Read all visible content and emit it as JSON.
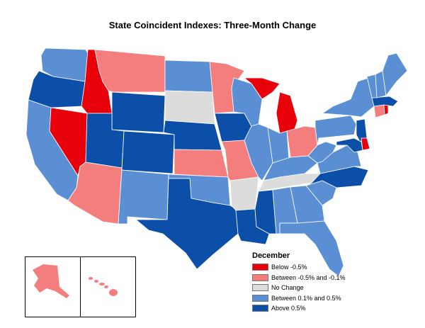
{
  "title": "State Coincident Indexes: Three-Month Change",
  "legend": {
    "title": "December",
    "items": [
      {
        "label": "Below -0.5%",
        "color": "#e8000b"
      },
      {
        "label": "Between -0.5% and -0.1%",
        "color": "#f47e7e"
      },
      {
        "label": "No Change",
        "color": "#dcdcdc"
      },
      {
        "label": "Between 0.1% and 0.5%",
        "color": "#5b8fd3"
      },
      {
        "label": "Above 0.5%",
        "color": "#0b4fa8"
      }
    ]
  },
  "states": {
    "WA": "between_0.1_0.5",
    "OR": "above_0.5",
    "CA": "between_0.1_0.5",
    "NV": "below_-0.5",
    "ID": "below_-0.5",
    "MT": "between_-0.5_-0.1",
    "WY": "above_0.5",
    "UT": "above_0.5",
    "AZ": "between_-0.5_-0.1",
    "CO": "above_0.5",
    "NM": "between_0.1_0.5",
    "ND": "between_0.1_0.5",
    "SD": "no_change",
    "NE": "above_0.5",
    "KS": "between_-0.5_-0.1",
    "OK": "between_0.1_0.5",
    "TX": "above_0.5",
    "MN": "between_-0.5_-0.1",
    "IA": "above_0.5",
    "MO": "between_-0.5_-0.1",
    "AR": "no_change",
    "LA": "above_0.5",
    "WI": "between_0.1_0.5",
    "IL": "between_0.1_0.5",
    "MI": "below_-0.5",
    "IN": "between_0.1_0.5",
    "OH": "between_-0.5_-0.1",
    "KY": "between_0.1_0.5",
    "TN": "no_change",
    "MS": "above_0.5",
    "AL": "between_0.1_0.5",
    "GA": "between_0.1_0.5",
    "FL": "between_0.1_0.5",
    "SC": "between_0.1_0.5",
    "NC": "above_0.5",
    "VA": "between_0.1_0.5",
    "WV": "between_0.1_0.5",
    "PA": "between_0.1_0.5",
    "NY": "between_0.1_0.5",
    "NJ": "above_0.5",
    "DE": "below_-0.5",
    "MD": "above_0.5",
    "CT": "between_-0.5_-0.1",
    "RI": "below_-0.5",
    "MA": "above_0.5",
    "VT": "between_0.1_0.5",
    "NH": "between_0.1_0.5",
    "ME": "between_0.1_0.5",
    "AK": "between_-0.5_-0.1",
    "HI": "between_-0.5_-0.1"
  },
  "category_colors": {
    "below_-0.5": "#e8000b",
    "between_-0.5_-0.1": "#f47e7e",
    "no_change": "#dcdcdc",
    "between_0.1_0.5": "#5b8fd3",
    "above_0.5": "#0b4fa8"
  }
}
